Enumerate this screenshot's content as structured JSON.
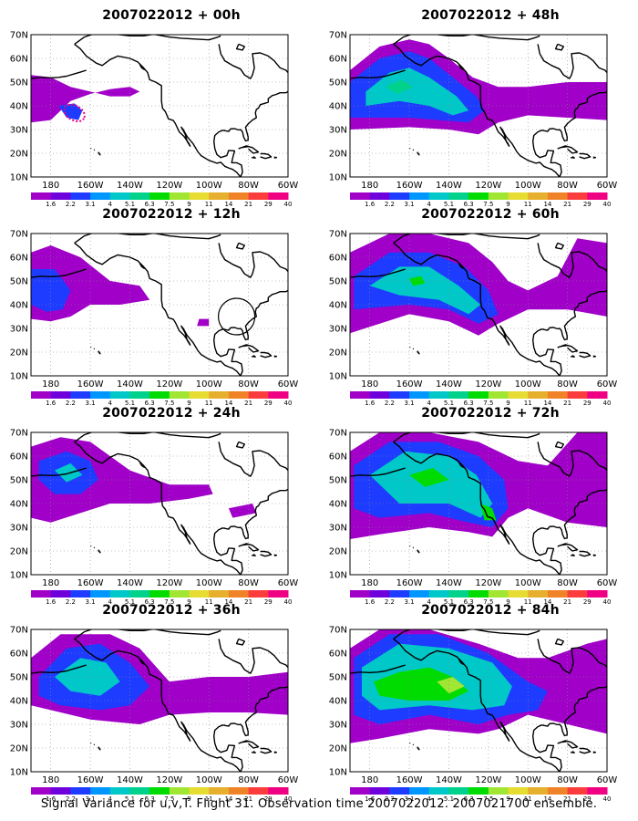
{
  "figure": {
    "caption": "Signal Variance for u,v,T. Flight 31. Observation time 2007022012. 2007021700 ensemble."
  },
  "axes": {
    "lat_labels": [
      "10N",
      "20N",
      "30N",
      "40N",
      "50N",
      "60N",
      "70N"
    ],
    "lon_labels": [
      "180",
      "160W",
      "140W",
      "120W",
      "100W",
      "80W",
      "60W"
    ],
    "lat_range": [
      10,
      70
    ],
    "lon_range_display": [
      -190,
      -60
    ]
  },
  "colorbar": {
    "labels": [
      "1.6",
      "2.2",
      "3.1",
      "4",
      "5.1",
      "6.3",
      "7.5",
      "9",
      "11",
      "14",
      "21",
      "29",
      "40"
    ],
    "colors": [
      "#a000c8",
      "#6e00dc",
      "#1e3cff",
      "#0096ff",
      "#00c8c8",
      "#00d28c",
      "#00dc00",
      "#a0e632",
      "#e6dc32",
      "#e6af2d",
      "#f08228",
      "#fa3c3c",
      "#f00082"
    ]
  },
  "panels": [
    {
      "id": "panel-00h",
      "title": "2007022012 + 00h",
      "forecast_hour": 0
    },
    {
      "id": "panel-48h",
      "title": "2007022012 + 48h",
      "forecast_hour": 48
    },
    {
      "id": "panel-12h",
      "title": "2007022012 + 12h",
      "forecast_hour": 12
    },
    {
      "id": "panel-60h",
      "title": "2007022012 + 60h",
      "forecast_hour": 60
    },
    {
      "id": "panel-24h",
      "title": "2007022012 + 24h",
      "forecast_hour": 24
    },
    {
      "id": "panel-72h",
      "title": "2007022012 + 72h",
      "forecast_hour": 72
    },
    {
      "id": "panel-36h",
      "title": "2007022012 + 36h",
      "forecast_hour": 36
    },
    {
      "id": "panel-84h",
      "title": "2007022012 + 84h",
      "forecast_hour": 84
    }
  ]
}
